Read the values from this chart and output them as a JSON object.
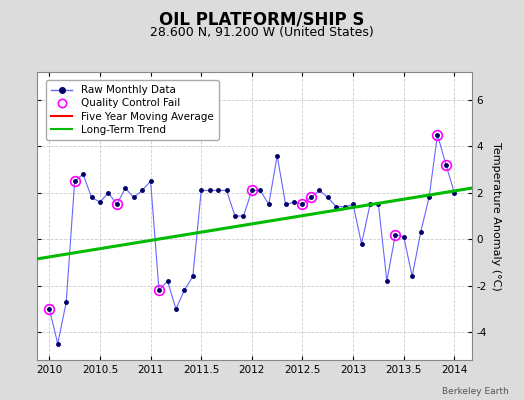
{
  "title": "OIL PLATFORM/SHIP S",
  "subtitle": "28.600 N, 91.200 W (United States)",
  "ylabel": "Temperature Anomaly (°C)",
  "watermark": "Berkeley Earth",
  "background_color": "#dcdcdc",
  "plot_bg_color": "#ffffff",
  "xlim": [
    2009.875,
    2014.17
  ],
  "ylim": [
    -5.2,
    7.2
  ],
  "yticks": [
    -4,
    -2,
    0,
    2,
    4,
    6
  ],
  "xticks": [
    2010,
    2010.5,
    2011,
    2011.5,
    2012,
    2012.5,
    2013,
    2013.5,
    2014
  ],
  "xtick_labels": [
    "2010",
    "2010.5",
    "2011",
    "2011.5",
    "2012",
    "2012.5",
    "2013",
    "2013.5",
    "2014"
  ],
  "raw_x": [
    2010.0,
    2010.083,
    2010.167,
    2010.25,
    2010.333,
    2010.417,
    2010.5,
    2010.583,
    2010.667,
    2010.75,
    2010.833,
    2010.917,
    2011.0,
    2011.083,
    2011.167,
    2011.25,
    2011.333,
    2011.417,
    2011.5,
    2011.583,
    2011.667,
    2011.75,
    2011.833,
    2011.917,
    2012.0,
    2012.083,
    2012.167,
    2012.25,
    2012.333,
    2012.417,
    2012.5,
    2012.583,
    2012.667,
    2012.75,
    2012.833,
    2012.917,
    2013.0,
    2013.083,
    2013.167,
    2013.25,
    2013.333,
    2013.417,
    2013.5,
    2013.583,
    2013.667,
    2013.75,
    2013.833,
    2013.917,
    2014.0
  ],
  "raw_y": [
    -3.0,
    -4.5,
    -2.7,
    2.5,
    2.8,
    1.8,
    1.6,
    2.0,
    1.5,
    2.2,
    1.8,
    2.1,
    2.5,
    -2.2,
    -1.8,
    -3.0,
    -2.2,
    -1.6,
    2.1,
    2.1,
    2.1,
    2.1,
    1.0,
    1.0,
    2.1,
    2.1,
    1.5,
    3.6,
    1.5,
    1.6,
    1.5,
    1.8,
    2.1,
    1.8,
    1.4,
    1.4,
    1.5,
    -0.2,
    1.5,
    1.5,
    -1.8,
    0.2,
    0.1,
    -1.6,
    0.3,
    1.8,
    4.5,
    3.2,
    2.0
  ],
  "qc_fail_x": [
    2010.0,
    2010.25,
    2010.667,
    2011.083,
    2012.0,
    2012.5,
    2012.583,
    2013.417,
    2013.833,
    2013.917
  ],
  "qc_fail_y": [
    -3.0,
    2.5,
    1.5,
    -2.2,
    2.1,
    1.5,
    1.8,
    0.2,
    4.5,
    3.2
  ],
  "trend_x": [
    2009.875,
    2014.17
  ],
  "trend_y": [
    -0.85,
    2.2
  ],
  "raw_line_color": "#6666ff",
  "raw_dot_color": "#000066",
  "qc_color": "#ff00ff",
  "trend_color": "#00bb00",
  "ma_color": "#ff0000",
  "grid_color": "#cccccc",
  "title_fontsize": 12,
  "subtitle_fontsize": 9,
  "ylabel_fontsize": 8,
  "tick_fontsize": 7.5,
  "legend_fontsize": 7.5
}
